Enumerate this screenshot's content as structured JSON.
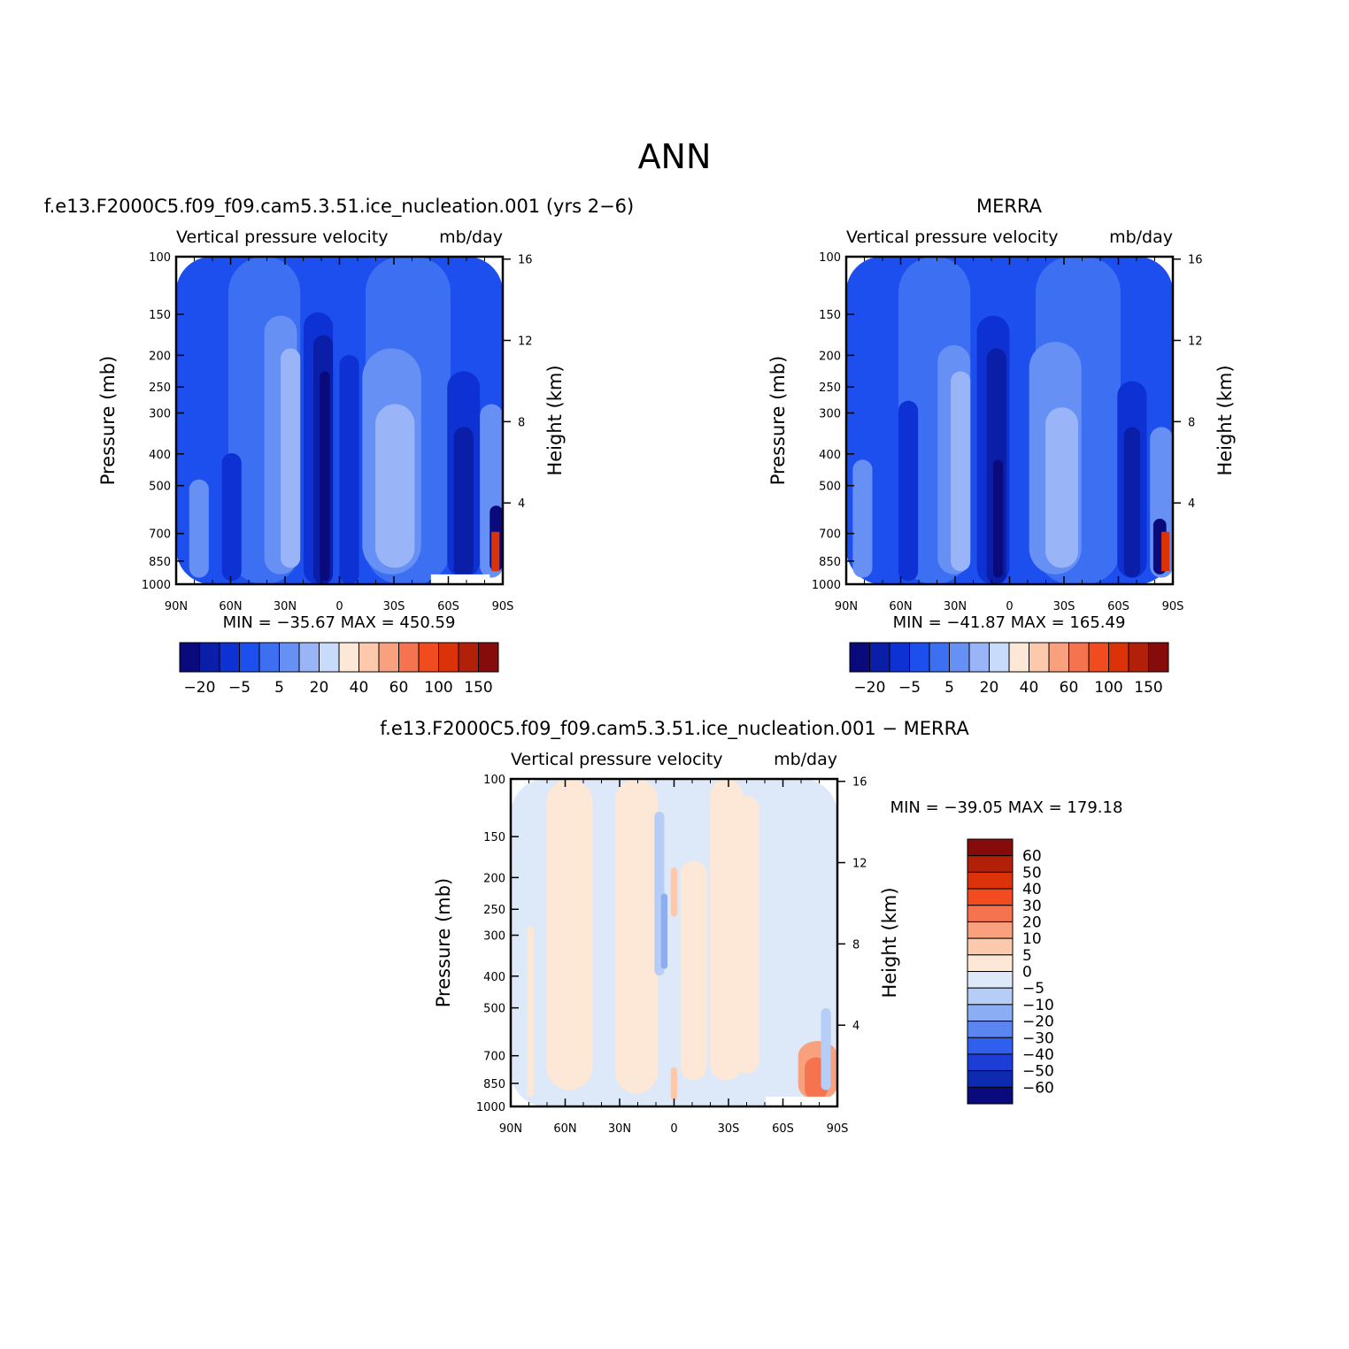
{
  "figure": {
    "title": "ANN"
  },
  "panels": [
    {
      "id": "model",
      "title": "f.e13.F2000C5.f09_f09.cam5.3.51.ice_nucleation.001 (yrs 2−6)",
      "subtitle_left": "Vertical pressure velocity",
      "subtitle_right": "mb/day",
      "ylabel": "Pressure (mb)",
      "y2label": "Height (km)",
      "minmax": "MIN = −35.67   MAX = 450.59"
    },
    {
      "id": "obs",
      "title": "MERRA",
      "subtitle_left": "Vertical pressure velocity",
      "subtitle_right": "mb/day",
      "ylabel": "Pressure (mb)",
      "y2label": "Height (km)",
      "minmax": "MIN = −41.87   MAX = 165.49"
    },
    {
      "id": "diff",
      "title": "f.e13.F2000C5.f09_f09.cam5.3.51.ice_nucleation.001 − MERRA",
      "subtitle_left": "Vertical pressure velocity",
      "subtitle_right": "mb/day",
      "ylabel": "Pressure (mb)",
      "y2label": "Height (km)",
      "minmax": "MIN = −39.05   MAX = 179.18"
    }
  ],
  "chart_data": {
    "type": "heatmap",
    "x_ticks": [
      "90N",
      "60N",
      "30N",
      "0",
      "30S",
      "60S",
      "90S"
    ],
    "y_ticks": [
      "100",
      "150",
      "200",
      "250",
      "300",
      "400",
      "500",
      "700",
      "850",
      "1000"
    ],
    "y_tick_values": [
      100,
      150,
      200,
      250,
      300,
      400,
      500,
      700,
      850,
      1000
    ],
    "y2_ticks": [
      "16",
      "12",
      "8",
      "4"
    ],
    "y2_tick_values": [
      16,
      12,
      8,
      4
    ],
    "ylim": [
      1000,
      100
    ],
    "y_scale": "log",
    "main_colorbar": {
      "levels": [
        -20,
        -15,
        -10,
        -5,
        0,
        5,
        10,
        20,
        30,
        40,
        50,
        60,
        80,
        100,
        120,
        150
      ],
      "labels": [
        "−20",
        "−5",
        "5",
        "20",
        "40",
        "60",
        "100",
        "150"
      ],
      "colors": [
        "#0a0a7c",
        "#0a1ea8",
        "#0d31d3",
        "#1d4fee",
        "#3d6ff2",
        "#6790f5",
        "#9ab5f7",
        "#c9dbfb",
        "#fde7d6",
        "#fcc9ac",
        "#f9a07e",
        "#f6734f",
        "#f24b1f",
        "#dc3209",
        "#b3200a",
        "#860c0c"
      ]
    },
    "diff_colorbar": {
      "labels": [
        "60",
        "50",
        "40",
        "30",
        "20",
        "10",
        "5",
        "0",
        "−5",
        "−10",
        "−20",
        "−30",
        "−40",
        "−50",
        "−60"
      ],
      "colors": [
        "#860c0c",
        "#b3200a",
        "#dc3209",
        "#f24b1f",
        "#f6734f",
        "#f9a07e",
        "#fcc9ac",
        "#fde7d6",
        "#dde9f9",
        "#b5cdf7",
        "#8badf4",
        "#5b85f0",
        "#2f5fec",
        "#1d3ed6",
        "#0d2bb0",
        "#0a0a7c"
      ]
    },
    "description_columns_lat": [
      "90N",
      "60N",
      "30N",
      "0",
      "30S",
      "60S",
      "90S"
    ]
  }
}
